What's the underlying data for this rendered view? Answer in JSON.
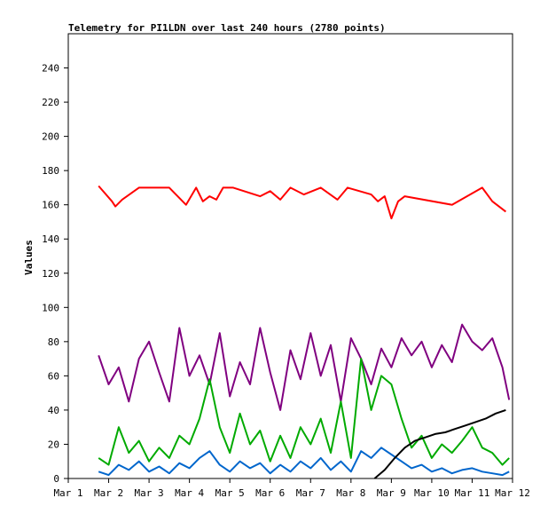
{
  "chart_data": {
    "type": "line",
    "title": "Telemetry for PI1LDN over last 240 hours (2780 points)",
    "xlabel": "",
    "ylabel": "Values",
    "xlim": [
      "2025-03-01",
      "2025-03-12"
    ],
    "ylim": [
      0,
      260
    ],
    "x_ticks": [
      "Mar 1",
      "Mar 2",
      "Mar 3",
      "Mar 4",
      "Mar 5",
      "Mar 6",
      "Mar 7",
      "Mar 8",
      "Mar 9",
      "Mar 10",
      "Mar 11",
      "Mar 12"
    ],
    "y_ticks": [
      0,
      20,
      40,
      60,
      80,
      100,
      120,
      140,
      160,
      180,
      200,
      220,
      240
    ],
    "grid": false,
    "legend": "none",
    "series": [
      {
        "color": "#ff0000",
        "x": [
          "2025-03-01 18:00",
          "2025-03-02 02:00",
          "2025-03-02 04:00",
          "2025-03-02 08:00",
          "2025-03-02 18:00",
          "2025-03-03 12:00",
          "2025-03-03 22:00",
          "2025-03-04 04:00",
          "2025-03-04 08:00",
          "2025-03-04 12:00",
          "2025-03-04 16:00",
          "2025-03-04 20:00",
          "2025-03-05 02:00",
          "2025-03-05 18:00",
          "2025-03-06 00:00",
          "2025-03-06 06:00",
          "2025-03-06 12:00",
          "2025-03-06 20:00",
          "2025-03-07 06:00",
          "2025-03-07 16:00",
          "2025-03-07 22:00",
          "2025-03-08 12:00",
          "2025-03-08 16:00",
          "2025-03-08 20:00",
          "2025-03-09 00:00",
          "2025-03-09 04:00",
          "2025-03-09 08:00",
          "2025-03-10 12:00",
          "2025-03-11 06:00",
          "2025-03-11 12:00",
          "2025-03-11 20:00"
        ],
        "values": [
          171,
          162,
          159,
          163,
          170,
          170,
          160,
          170,
          162,
          165,
          163,
          170,
          170,
          165,
          168,
          163,
          170,
          166,
          170,
          163,
          170,
          166,
          162,
          165,
          152,
          162,
          165,
          160,
          170,
          162,
          156
        ]
      },
      {
        "color": "#800080",
        "x": [
          "2025-03-01 18:00",
          "2025-03-02 00:00",
          "2025-03-02 06:00",
          "2025-03-02 12:00",
          "2025-03-02 18:00",
          "2025-03-03 00:00",
          "2025-03-03 06:00",
          "2025-03-03 12:00",
          "2025-03-03 18:00",
          "2025-03-04 00:00",
          "2025-03-04 06:00",
          "2025-03-04 12:00",
          "2025-03-04 18:00",
          "2025-03-05 00:00",
          "2025-03-05 06:00",
          "2025-03-05 12:00",
          "2025-03-05 18:00",
          "2025-03-06 00:00",
          "2025-03-06 06:00",
          "2025-03-06 12:00",
          "2025-03-06 18:00",
          "2025-03-07 00:00",
          "2025-03-07 06:00",
          "2025-03-07 12:00",
          "2025-03-07 18:00",
          "2025-03-08 00:00",
          "2025-03-08 06:00",
          "2025-03-08 12:00",
          "2025-03-08 18:00",
          "2025-03-09 00:00",
          "2025-03-09 06:00",
          "2025-03-09 12:00",
          "2025-03-09 18:00",
          "2025-03-10 00:00",
          "2025-03-10 06:00",
          "2025-03-10 12:00",
          "2025-03-10 18:00",
          "2025-03-11 00:00",
          "2025-03-11 06:00",
          "2025-03-11 12:00",
          "2025-03-11 18:00",
          "2025-03-11 22:00"
        ],
        "values": [
          72,
          55,
          65,
          45,
          70,
          80,
          62,
          45,
          88,
          60,
          72,
          55,
          85,
          48,
          68,
          55,
          88,
          62,
          40,
          75,
          58,
          85,
          60,
          78,
          45,
          82,
          70,
          55,
          76,
          65,
          82,
          72,
          80,
          65,
          78,
          68,
          90,
          80,
          75,
          82,
          65,
          46
        ]
      },
      {
        "color": "#00aa00",
        "x": [
          "2025-03-01 18:00",
          "2025-03-02 00:00",
          "2025-03-02 06:00",
          "2025-03-02 12:00",
          "2025-03-02 18:00",
          "2025-03-03 00:00",
          "2025-03-03 06:00",
          "2025-03-03 12:00",
          "2025-03-03 18:00",
          "2025-03-04 00:00",
          "2025-03-04 06:00",
          "2025-03-04 12:00",
          "2025-03-04 18:00",
          "2025-03-05 00:00",
          "2025-03-05 06:00",
          "2025-03-05 12:00",
          "2025-03-05 18:00",
          "2025-03-06 00:00",
          "2025-03-06 06:00",
          "2025-03-06 12:00",
          "2025-03-06 18:00",
          "2025-03-07 00:00",
          "2025-03-07 06:00",
          "2025-03-07 12:00",
          "2025-03-07 18:00",
          "2025-03-08 00:00",
          "2025-03-08 06:00",
          "2025-03-08 12:00",
          "2025-03-08 18:00",
          "2025-03-09 00:00",
          "2025-03-09 06:00",
          "2025-03-09 12:00",
          "2025-03-09 18:00",
          "2025-03-10 00:00",
          "2025-03-10 06:00",
          "2025-03-10 12:00",
          "2025-03-10 18:00",
          "2025-03-11 00:00",
          "2025-03-11 06:00",
          "2025-03-11 12:00",
          "2025-03-11 18:00",
          "2025-03-11 22:00"
        ],
        "values": [
          12,
          8,
          30,
          15,
          22,
          10,
          18,
          12,
          25,
          20,
          35,
          58,
          30,
          15,
          38,
          20,
          28,
          10,
          25,
          12,
          30,
          20,
          35,
          15,
          45,
          12,
          70,
          40,
          60,
          55,
          35,
          18,
          25,
          12,
          20,
          15,
          22,
          30,
          18,
          15,
          8,
          12
        ]
      },
      {
        "color": "#0066cc",
        "x": [
          "2025-03-01 18:00",
          "2025-03-02 00:00",
          "2025-03-02 06:00",
          "2025-03-02 12:00",
          "2025-03-02 18:00",
          "2025-03-03 00:00",
          "2025-03-03 06:00",
          "2025-03-03 12:00",
          "2025-03-03 18:00",
          "2025-03-04 00:00",
          "2025-03-04 06:00",
          "2025-03-04 12:00",
          "2025-03-04 18:00",
          "2025-03-05 00:00",
          "2025-03-05 06:00",
          "2025-03-05 12:00",
          "2025-03-05 18:00",
          "2025-03-06 00:00",
          "2025-03-06 06:00",
          "2025-03-06 12:00",
          "2025-03-06 18:00",
          "2025-03-07 00:00",
          "2025-03-07 06:00",
          "2025-03-07 12:00",
          "2025-03-07 18:00",
          "2025-03-08 00:00",
          "2025-03-08 06:00",
          "2025-03-08 12:00",
          "2025-03-08 18:00",
          "2025-03-09 00:00",
          "2025-03-09 06:00",
          "2025-03-09 12:00",
          "2025-03-09 18:00",
          "2025-03-10 00:00",
          "2025-03-10 06:00",
          "2025-03-10 12:00",
          "2025-03-10 18:00",
          "2025-03-11 00:00",
          "2025-03-11 06:00",
          "2025-03-11 12:00",
          "2025-03-11 18:00",
          "2025-03-11 22:00"
        ],
        "values": [
          4,
          2,
          8,
          5,
          10,
          4,
          7,
          3,
          9,
          6,
          12,
          16,
          8,
          4,
          10,
          6,
          9,
          3,
          8,
          4,
          10,
          6,
          12,
          5,
          10,
          4,
          16,
          12,
          18,
          14,
          10,
          6,
          8,
          4,
          6,
          3,
          5,
          6,
          4,
          3,
          2,
          4
        ]
      },
      {
        "color": "#000000",
        "x": [
          "2025-03-08 14:00",
          "2025-03-08 20:00",
          "2025-03-09 02:00",
          "2025-03-09 08:00",
          "2025-03-09 14:00",
          "2025-03-09 20:00",
          "2025-03-10 02:00",
          "2025-03-10 08:00",
          "2025-03-10 14:00",
          "2025-03-10 20:00",
          "2025-03-11 02:00",
          "2025-03-11 08:00",
          "2025-03-11 14:00",
          "2025-03-11 20:00"
        ],
        "values": [
          0,
          5,
          12,
          18,
          22,
          24,
          26,
          27,
          29,
          31,
          33,
          35,
          38,
          40
        ]
      }
    ]
  }
}
